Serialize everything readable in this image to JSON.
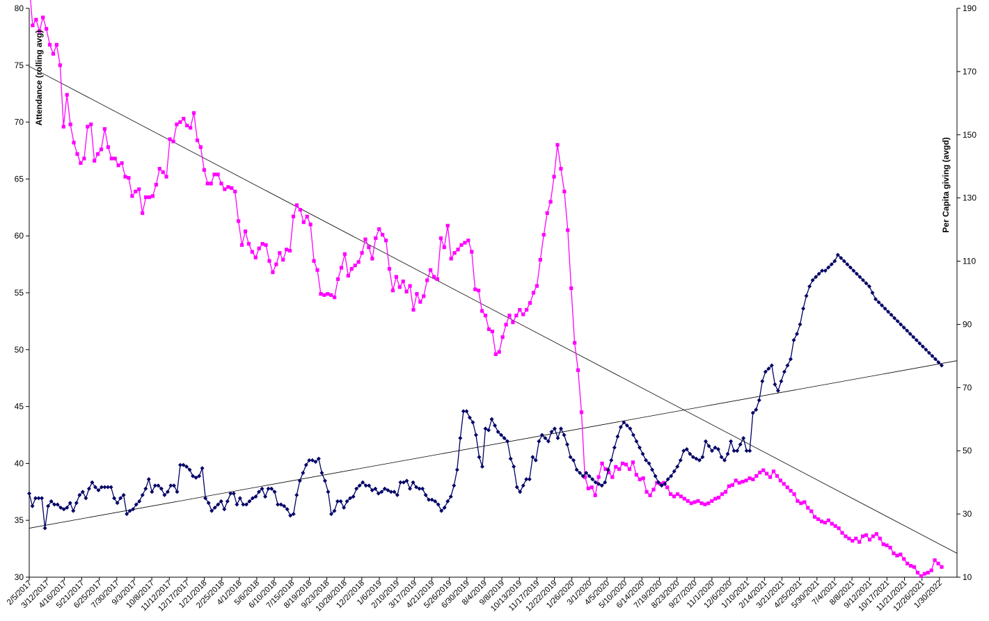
{
  "chart_data": {
    "type": "line",
    "title": "",
    "y_left": {
      "label": "Attendance (rolling avg)",
      "range": [
        30,
        80
      ],
      "ticks": [
        30,
        35,
        40,
        45,
        50,
        55,
        60,
        65,
        70,
        75,
        80
      ]
    },
    "y_right": {
      "label": "Per Capita giving (avgd)",
      "range": [
        10,
        190
      ],
      "ticks": [
        10,
        30,
        50,
        70,
        90,
        110,
        130,
        150,
        170,
        190
      ]
    },
    "x_tick_labels": [
      "2/5/2017",
      "3/12/2017",
      "4/16/2017",
      "5/21/2017",
      "6/25/2017",
      "7/30/2017",
      "9/3/2017",
      "10/8/2017",
      "11/12/2017",
      "12/17/2017",
      "1/21/2018",
      "2/25/2018",
      "4/1/2018",
      "5/6/2018",
      "6/10/2018",
      "7/15/2018",
      "8/19/2018",
      "9/23/2018",
      "10/28/2018",
      "12/2/2018",
      "1/6/2019",
      "2/10/2019",
      "3/17/2019",
      "4/21/2019",
      "5/26/2019",
      "6/30/2019",
      "8/4/2019",
      "9/8/2019",
      "10/13/2019",
      "11/17/2019",
      "12/22/2019",
      "1/26/2020",
      "3/1/2020",
      "4/5/2020",
      "5/10/2020",
      "6/14/2020",
      "7/19/2020",
      "8/23/2020",
      "9/27/2020",
      "11/1/2020",
      "12/6/2020",
      "1/10/2021",
      "2/14/2021",
      "3/21/2021",
      "4/25/2021",
      "5/30/2021",
      "7/4/2021",
      "8/8/2021",
      "9/12/2021",
      "10/17/2021",
      "11/21/2021",
      "12/26/2021",
      "1/30/2022"
    ],
    "grid": false,
    "legend": "none",
    "colors": {
      "attendance": "#ff00ff",
      "giving": "#000066",
      "trend": "#000000"
    },
    "series": [
      {
        "axis": "left",
        "marker": "square",
        "color": "#ff00ff",
        "values": [
          82,
          78.5,
          79,
          78,
          79.2,
          78.2,
          76.8,
          76,
          76.8,
          75,
          69.6,
          72.4,
          69.8,
          68.2,
          67.2,
          66.4,
          66.8,
          69.6,
          69.8,
          66.6,
          67.2,
          67.6,
          69.4,
          67.8,
          66.8,
          66.8,
          66.2,
          66.4,
          65.2,
          65.1,
          63.5,
          63.9,
          64.1,
          62,
          63.4,
          63.4,
          63.5,
          64.5,
          65.9,
          65.6,
          65.2,
          68.5,
          68.3,
          69.8,
          70,
          70.3,
          69.7,
          69.5,
          70.8,
          68.4,
          67.8,
          65.8,
          64.6,
          64.6,
          65.4,
          65.4,
          64.6,
          64.1,
          64.3,
          64.2,
          63.9,
          61.3,
          59.2,
          60.4,
          59.3,
          58.6,
          58.1,
          58.9,
          59.3,
          59.2,
          57.8,
          56.8,
          57.5,
          58.5,
          57.9,
          58.8,
          58.7,
          61.7,
          62.7,
          62.3,
          61.2,
          61.7,
          61,
          57.8,
          57,
          54.9,
          54.8,
          54.9,
          54.8,
          54.6,
          56.2,
          57.2,
          58.4,
          56.5,
          57.1,
          57.4,
          57.7,
          58.5,
          59.7,
          59,
          58,
          59.8,
          60.6,
          60.1,
          59.6,
          57.1,
          55.2,
          56.4,
          55.5,
          56,
          55.1,
          55.6,
          53.5,
          54.9,
          54.2,
          54.7,
          56.1,
          57,
          56.4,
          56.2,
          59.8,
          59,
          60.9,
          58,
          58.5,
          58.8,
          59.2,
          59.4,
          59.6,
          58.6,
          55.3,
          55.2,
          53.4,
          53,
          51.8,
          51.6,
          49.6,
          49.8,
          51.1,
          52.2,
          53,
          52.4,
          53,
          53.5,
          53.1,
          53.5,
          54.1,
          55,
          55.6,
          57.9,
          60.1,
          62,
          63,
          65.2,
          68,
          65.9,
          63.9,
          60.5,
          55.4,
          50.6,
          48.2,
          44.5,
          38.8,
          37.8,
          37.9,
          37.2,
          38.8,
          40,
          39.5,
          39.2,
          38.8,
          39.7,
          39.5,
          40,
          39.9,
          39.5,
          40.1,
          39,
          38.6,
          38.7,
          37.5,
          37.2,
          37.7,
          38.3,
          38.2,
          38.3,
          37.9,
          37.3,
          37.1,
          37.3,
          37.1,
          36.9,
          36.7,
          36.5,
          36.6,
          36.7,
          36.5,
          36.4,
          36.5,
          36.7,
          36.9,
          37,
          37.3,
          37.5,
          38,
          38.1,
          38.5,
          38.3,
          38.4,
          38.5,
          38.7,
          38.6,
          38.9,
          39.2,
          39.4,
          39.1,
          38.8,
          39.3,
          38.9,
          38.5,
          38.2,
          37.9,
          37.6,
          37.3,
          36.7,
          36.5,
          36.6,
          36.1,
          35.8,
          35.3,
          35.1,
          34.9,
          34.8,
          35,
          34.7,
          34.5,
          34.3,
          33.9,
          33.6,
          33.4,
          33.2,
          33.4,
          33.1,
          33.6,
          33.7,
          33.3,
          33.6,
          33.8,
          33.4,
          32.9,
          32.8,
          32.6,
          32.1,
          31.9,
          32,
          31.6,
          31.2,
          31,
          30.9,
          30.4,
          30.1,
          30.3,
          30.4,
          30.6,
          31.5,
          31.2,
          30.9
        ]
      },
      {
        "axis": "right",
        "marker": "diamond",
        "color": "#000066",
        "values": [
          36.5,
          32.5,
          35,
          35,
          35,
          25.5,
          32.5,
          34,
          33,
          33,
          32,
          31.5,
          32,
          33.5,
          31,
          33.5,
          36,
          37,
          35,
          38,
          40,
          38.5,
          37.5,
          38.5,
          38.5,
          38.5,
          38.5,
          35,
          33.5,
          35,
          36,
          30,
          31,
          31.5,
          33,
          34,
          36,
          38,
          41,
          37,
          39,
          39,
          38,
          36,
          37,
          39,
          39,
          37,
          45.5,
          45.5,
          45,
          44,
          42,
          41.5,
          42,
          44.5,
          35,
          33.5,
          31,
          32,
          33,
          34,
          31.5,
          34,
          36.5,
          36.5,
          33,
          35,
          33,
          33,
          34,
          35,
          35.5,
          37,
          38,
          35.5,
          38,
          38,
          37,
          33,
          33,
          32.5,
          31.5,
          29.5,
          30,
          36,
          40.5,
          43,
          45.5,
          47,
          47,
          46.5,
          47.5,
          43,
          40.5,
          37,
          30,
          31,
          34,
          34,
          32,
          34,
          35,
          35.5,
          38,
          39,
          40,
          39,
          39,
          37.5,
          38,
          36.5,
          37,
          38,
          37.5,
          37,
          37,
          36,
          40,
          40,
          40.5,
          38,
          40,
          38.5,
          38,
          38,
          36,
          34.5,
          34.5,
          34,
          33,
          31,
          32,
          34,
          35.5,
          39,
          44,
          54,
          62.5,
          62.5,
          60.5,
          59,
          55,
          48,
          45,
          57,
          56.5,
          60,
          58,
          56,
          55,
          54,
          53,
          47.5,
          45,
          38.5,
          37,
          39,
          41,
          41,
          48,
          47,
          53,
          55,
          54,
          53,
          56,
          57,
          54,
          57,
          55,
          52,
          48,
          47,
          44,
          43,
          42,
          43,
          42,
          41,
          40,
          39.5,
          39,
          40,
          44,
          47,
          51,
          54.5,
          57.5,
          59,
          58,
          57,
          55,
          53,
          51,
          49,
          47,
          46,
          44,
          42,
          40,
          39,
          39.5,
          41,
          42,
          43.5,
          45,
          47,
          50,
          50.5,
          49,
          48,
          47.5,
          47,
          48,
          53,
          51.5,
          50,
          51,
          50.5,
          48,
          47,
          49,
          53,
          50,
          50,
          52,
          54,
          50,
          50,
          62,
          63,
          66,
          72,
          75,
          76,
          77,
          71,
          69,
          72,
          75,
          77,
          79,
          85,
          87,
          90,
          95,
          99,
          102,
          104,
          105,
          106,
          107,
          107,
          108,
          109,
          110,
          112,
          111,
          110,
          109,
          108,
          107,
          106,
          105,
          104,
          103,
          102,
          100,
          98,
          97,
          96,
          95,
          94,
          93,
          92,
          91,
          90,
          89,
          88,
          87,
          86,
          85,
          84,
          83,
          82,
          81,
          80,
          79,
          78,
          77
        ]
      },
      {
        "axis": "left",
        "kind": "trendline",
        "color": "#000000",
        "values": [
          74.9,
          32.1
        ]
      },
      {
        "axis": "right",
        "kind": "trendline",
        "color": "#000000",
        "values": [
          25.5,
          78.5
        ]
      }
    ]
  }
}
